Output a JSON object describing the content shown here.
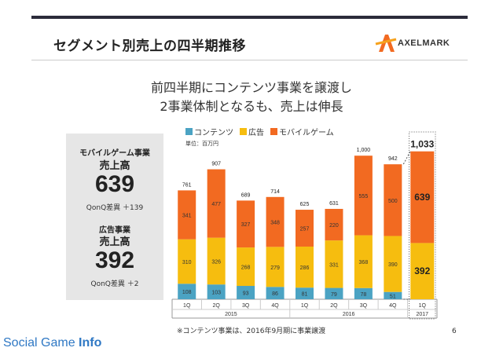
{
  "slide": {
    "title": "セグメント別売上の四半期推移",
    "logo_text": "AXELMARK",
    "headline_line1": "前四半期にコンテンツ事業を譲渡し",
    "headline_line2": "2事業体制となるも、売上は伸長",
    "footnote": "※コンテンツ事業は、2016年9月期に事業譲渡",
    "page_number": "6",
    "watermark_regular": "Social Game ",
    "watermark_bold": "Info"
  },
  "kpi": {
    "mobile_label": "モバイルゲーム事業",
    "mobile_sub": "売上高",
    "mobile_value": "639",
    "mobile_diff": "QonQ差異 ＋139",
    "ad_label": "広告事業",
    "ad_sub": "売上高",
    "ad_value": "392",
    "ad_diff": "QonQ差異 ＋2"
  },
  "colors": {
    "contents": "#4ba3c3",
    "ads": "#f6bd0f",
    "mobile": "#f26a21"
  },
  "chart_data": {
    "type": "bar",
    "stacked": true,
    "unit_label": "単位：百万円",
    "categories": [
      "1Q",
      "2Q",
      "3Q",
      "4Q",
      "1Q",
      "2Q",
      "3Q",
      "4Q",
      "1Q"
    ],
    "years": [
      {
        "label": "2015",
        "from": 0,
        "to": 3
      },
      {
        "label": "2016",
        "from": 4,
        "to": 7
      },
      {
        "label": "2017",
        "from": 8,
        "to": 8
      }
    ],
    "series": [
      {
        "name": "コンテンツ",
        "color": "#4ba3c3",
        "values": [
          108,
          103,
          93,
          86,
          81,
          79,
          78,
          51,
          0
        ]
      },
      {
        "name": "広告",
        "color": "#f6bd0f",
        "values": [
          310,
          326,
          268,
          279,
          286,
          331,
          368,
          390,
          392
        ]
      },
      {
        "name": "モバイルゲーム",
        "color": "#f26a21",
        "values": [
          341,
          477,
          327,
          348,
          257,
          220,
          555,
          500,
          639
        ]
      }
    ],
    "totals": [
      761,
      907,
      689,
      714,
      625,
      631,
      1000,
      942,
      1033
    ],
    "total_labels": [
      "761",
      "907",
      "689",
      "714",
      "625",
      "631",
      "1,000",
      "942",
      "1,033"
    ],
    "highlight_index": 8,
    "ylim": [
      0,
      1150
    ]
  }
}
